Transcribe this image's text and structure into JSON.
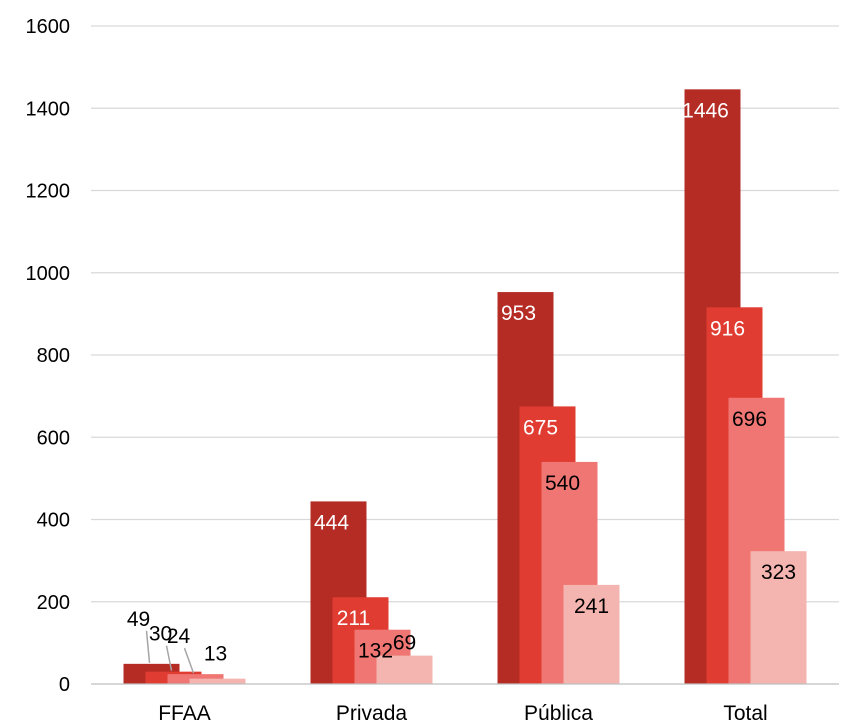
{
  "chart_data": {
    "type": "bar",
    "categories": [
      "FFAA",
      "Privada",
      "Pública",
      "Total"
    ],
    "series": [
      {
        "values": [
          49,
          444,
          953,
          1446
        ],
        "color": "#b52c25"
      },
      {
        "values": [
          30,
          211,
          675,
          916
        ],
        "color": "#e03c31"
      },
      {
        "values": [
          24,
          132,
          540,
          696
        ],
        "color": "#ef7672"
      },
      {
        "values": [
          13,
          69,
          241,
          323
        ],
        "color": "#f4b4b0"
      }
    ],
    "title": "",
    "xlabel": "",
    "ylabel": "",
    "ylim": [
      0,
      1600
    ],
    "yticks": [
      0,
      200,
      400,
      600,
      800,
      1000,
      1200,
      1400,
      1600
    ],
    "grid": true,
    "legend": "none"
  }
}
